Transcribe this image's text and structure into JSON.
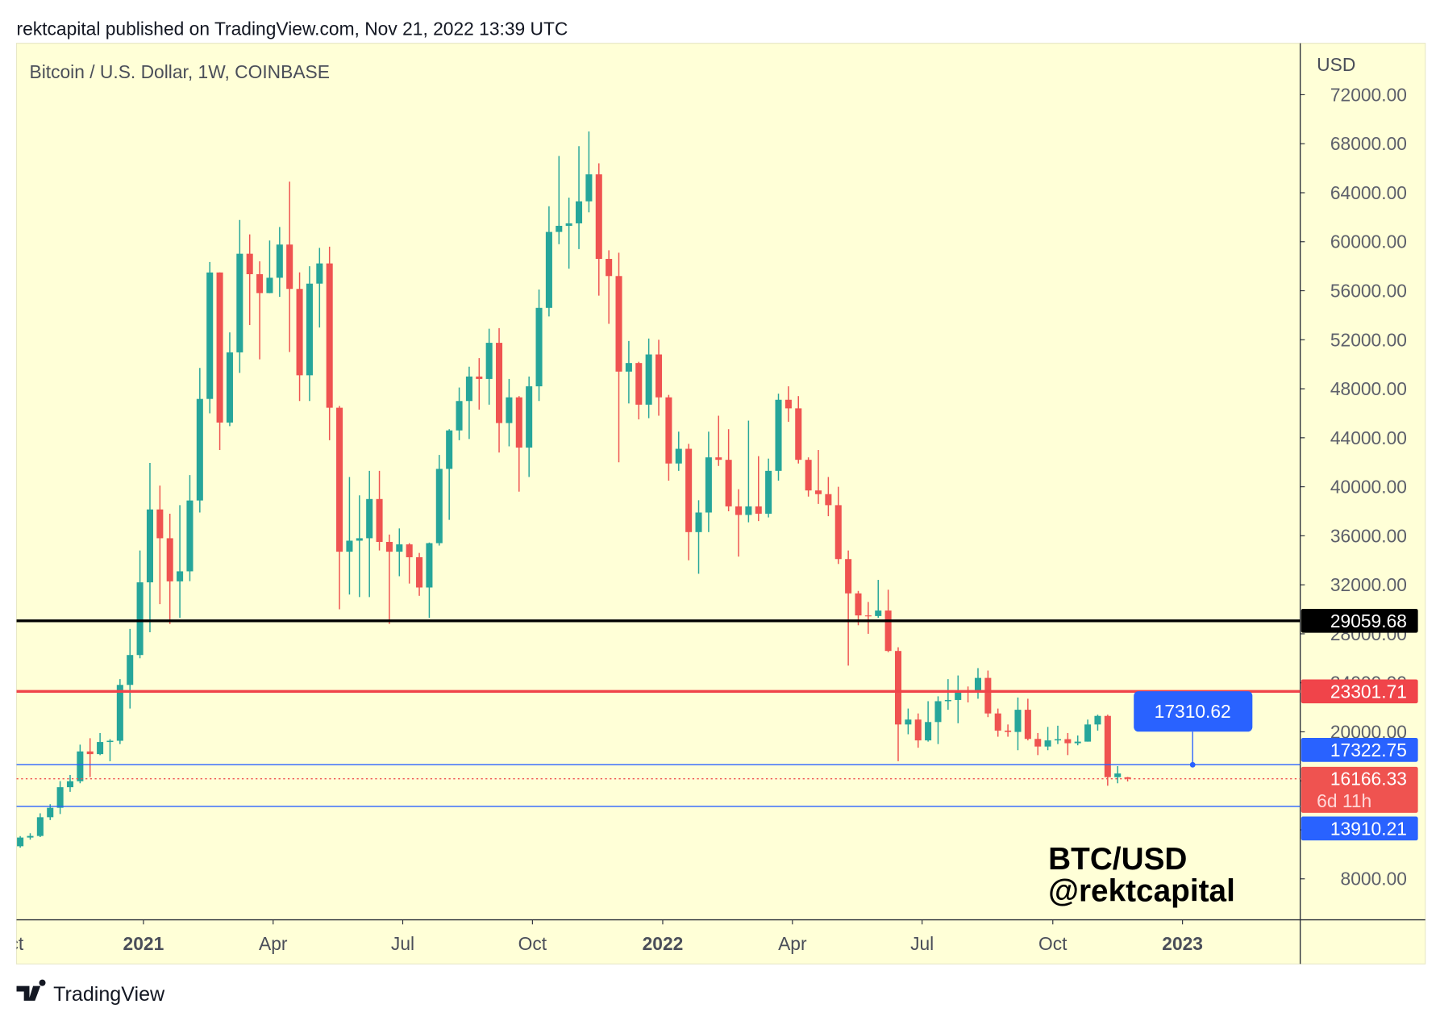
{
  "chart_data": {
    "type": "candlestick",
    "header": "rektcapital published on TradingView.com, Nov 21, 2022 13:39 UTC",
    "title": "Bitcoin / U.S. Dollar, 1W, COINBASE",
    "y_label": "USD",
    "watermark": [
      "BTC/USD",
      "@rektcapital"
    ],
    "up_color": "#26a69a",
    "down_color": "#ef5350",
    "open": [
      10660,
      11370,
      11500,
      13030,
      13800,
      15480,
      15970,
      18400,
      18180,
      19170,
      19270,
      23830,
      26270,
      32200,
      38150,
      35800,
      32280,
      33100,
      38880,
      47170,
      57490,
      45240,
      50970,
      59020,
      57350,
      55810,
      57060,
      59770,
      56150,
      49100,
      56580,
      58230,
      46450,
      34700,
      35600,
      35800,
      39000,
      35500,
      34700,
      35300,
      34250,
      31780,
      35400,
      41460,
      44600,
      47000,
      49000,
      48800,
      51750,
      45200,
      47300,
      43200,
      48200,
      54600,
      60800,
      61300,
      61500,
      63300,
      65500,
      58600,
      57200,
      49400,
      50100,
      46700,
      50800,
      47300,
      41900,
      43100,
      36300,
      37900,
      42400,
      42200,
      38400,
      37700,
      38400,
      37800,
      41300,
      47100,
      46400,
      42200,
      39700,
      39400,
      38500,
      34100,
      31300,
      29500,
      29450,
      29900,
      26600,
      20600,
      21000,
      19300,
      20800,
      22500,
      22600,
      23300,
      23200,
      24400,
      21500,
      20100,
      19990,
      21800,
      19420,
      18800,
      19300,
      19400,
      19070,
      19200,
      20600,
      21300,
      16300,
      16290
    ],
    "high": [
      11490,
      11720,
      13350,
      14090,
      15970,
      16480,
      18950,
      19480,
      19900,
      19400,
      24300,
      28400,
      34800,
      41950,
      40100,
      37800,
      38500,
      40950,
      49700,
      58350,
      57500,
      52600,
      61780,
      60600,
      58400,
      60100,
      61200,
      64900,
      57500,
      58000,
      59500,
      59600,
      46600,
      40800,
      39300,
      41300,
      41300,
      36100,
      36600,
      35400,
      34600,
      35450,
      42600,
      44700,
      48100,
      49800,
      50500,
      52900,
      52950,
      48800,
      47400,
      49000,
      56100,
      62900,
      67000,
      63600,
      67800,
      69000,
      66400,
      59300,
      59100,
      51900,
      50200,
      52100,
      52000,
      47500,
      44500,
      43500,
      38900,
      44500,
      45800,
      44700,
      39800,
      45400,
      42500,
      42300,
      47600,
      48200,
      47400,
      42400,
      43000,
      40800,
      40000,
      34800,
      31500,
      30600,
      32400,
      31600,
      26900,
      21900,
      21500,
      22500,
      22900,
      24300,
      24600,
      23700,
      25200,
      25000,
      21900,
      20600,
      22800,
      22700,
      19900,
      20400,
      20500,
      19900,
      19700,
      21000,
      21400,
      21400,
      17200,
      16320
    ],
    "low": [
      10540,
      11200,
      11410,
      12800,
      13290,
      15100,
      15800,
      16300,
      18100,
      17600,
      19000,
      21900,
      26000,
      28130,
      30420,
      28800,
      29300,
      32300,
      37900,
      46000,
      43000,
      44950,
      49300,
      53200,
      50400,
      55800,
      55500,
      51000,
      47000,
      47000,
      53000,
      43800,
      30000,
      31200,
      31000,
      31000,
      34800,
      28800,
      32700,
      32100,
      31100,
      29300,
      35200,
      37300,
      43800,
      43900,
      46300,
      46700,
      42800,
      43300,
      39600,
      40800,
      47000,
      53900,
      59800,
      57800,
      59400,
      62400,
      55600,
      53300,
      42000,
      46800,
      45500,
      45600,
      45800,
      40500,
      41300,
      34000,
      32900,
      36300,
      41700,
      38000,
      34300,
      37100,
      37200,
      37500,
      40500,
      45300,
      41900,
      39200,
      38600,
      37600,
      33700,
      25400,
      28700,
      28000,
      29300,
      26500,
      17600,
      19800,
      18700,
      19200,
      19000,
      21800,
      20700,
      22400,
      22700,
      21200,
      19600,
      19600,
      18500,
      19300,
      18100,
      18500,
      19000,
      18100,
      18900,
      19200,
      20100,
      15600,
      15800,
      15950
    ],
    "close": [
      11370,
      11500,
      13030,
      13800,
      15480,
      15970,
      18400,
      18180,
      19170,
      19270,
      23830,
      26270,
      32200,
      38150,
      35800,
      32280,
      33100,
      38880,
      47170,
      57490,
      45240,
      50970,
      59020,
      57350,
      55810,
      57060,
      59770,
      56150,
      49100,
      56580,
      58230,
      46450,
      34700,
      35600,
      35800,
      39000,
      35500,
      34700,
      35300,
      34250,
      31780,
      35400,
      41460,
      44600,
      47000,
      49000,
      48800,
      51750,
      45200,
      47300,
      43200,
      48200,
      54600,
      60800,
      61300,
      61500,
      63300,
      65500,
      58600,
      57200,
      49400,
      50100,
      46700,
      50800,
      47300,
      41900,
      43100,
      36300,
      37900,
      42400,
      42200,
      38400,
      37700,
      38400,
      37800,
      41300,
      47100,
      46400,
      42200,
      39700,
      39400,
      38500,
      34100,
      31300,
      29500,
      29450,
      29900,
      26600,
      20600,
      21000,
      19300,
      20800,
      22500,
      22600,
      23300,
      23200,
      24400,
      21500,
      20100,
      19990,
      21800,
      19420,
      18800,
      19300,
      19400,
      19070,
      19200,
      20600,
      21300,
      16300,
      16600,
      16166.33
    ],
    "xlim": [
      -0.37,
      128.3
    ],
    "xticks": [
      {
        "value": -1.1,
        "label": "Oct"
      },
      {
        "value": 12.35,
        "label": "2021"
      },
      {
        "value": 25.35,
        "label": "Apr"
      },
      {
        "value": 38.34,
        "label": "Jul"
      },
      {
        "value": 51.34,
        "label": "Oct"
      },
      {
        "value": 64.4,
        "label": "2022"
      },
      {
        "value": 77.4,
        "label": "Apr"
      },
      {
        "value": 90.4,
        "label": "Jul"
      },
      {
        "value": 103.5,
        "label": "Oct"
      },
      {
        "value": 116.5,
        "label": "2023"
      }
    ],
    "ylim": [
      4660,
      76200
    ],
    "yticks": [
      {
        "value": 8000,
        "label": "8000.00"
      },
      {
        "value": 12000,
        "label": "12000.00"
      },
      {
        "value": 16000,
        "label": "16000.00"
      },
      {
        "value": 20000,
        "label": "20000.00"
      },
      {
        "value": 24000,
        "label": "24000.00"
      },
      {
        "value": 28000,
        "label": "28000.00"
      },
      {
        "value": 32000,
        "label": "32000.00"
      },
      {
        "value": 36000,
        "label": "36000.00"
      },
      {
        "value": 40000,
        "label": "40000.00"
      },
      {
        "value": 44000,
        "label": "44000.00"
      },
      {
        "value": 48000,
        "label": "48000.00"
      },
      {
        "value": 52000,
        "label": "52000.00"
      },
      {
        "value": 56000,
        "label": "56000.00"
      },
      {
        "value": 60000,
        "label": "60000.00"
      },
      {
        "value": 64000,
        "label": "64000.00"
      },
      {
        "value": 68000,
        "label": "68000.00"
      },
      {
        "value": 72000,
        "label": "72000.00"
      }
    ],
    "levels": [
      {
        "value": 29059.68,
        "color": "#000000",
        "width": 3
      },
      {
        "value": 23301.71,
        "color": "#f0444a",
        "width": 3
      },
      {
        "value": 17322.75,
        "color": "#2962ff",
        "width": 1.2
      },
      {
        "value": 13910.21,
        "color": "#2962ff",
        "width": 1.2
      }
    ],
    "last_price": 16166.33,
    "last_color": "#ef5350",
    "countdown": "6d 11h",
    "callout": {
      "value": 17310.62,
      "color": "#2962ff"
    }
  },
  "footer": "TradingView"
}
